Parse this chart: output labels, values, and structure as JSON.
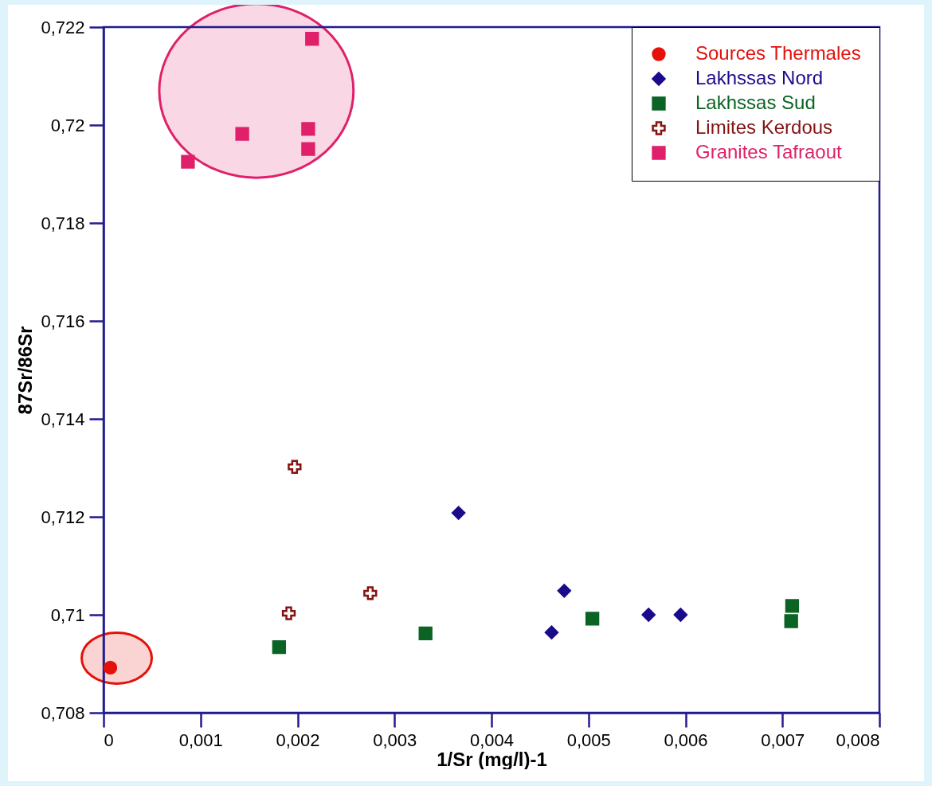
{
  "chart_data": {
    "type": "scatter",
    "xlabel": "1/Sr (mg/l)-1",
    "ylabel": "87Sr/86Sr",
    "xlim": [
      0,
      0.008
    ],
    "ylim": [
      0.708,
      0.722
    ],
    "xticks": [
      0,
      {
        "value": 0.001,
        "label": "0,001"
      },
      {
        "value": 0.002,
        "label": "0,002"
      },
      {
        "value": 0.003,
        "label": "0,003"
      },
      {
        "value": 0.004,
        "label": "0,004"
      },
      {
        "value": 0.005,
        "label": "0,005"
      },
      {
        "value": 0.006,
        "label": "0,006"
      },
      {
        "value": 0.007,
        "label": "0,007"
      },
      {
        "value": 0.008,
        "label": "0,008"
      }
    ],
    "yticks": [
      {
        "value": 0.708,
        "label": "0,708"
      },
      {
        "value": 0.71,
        "label": "0,71"
      },
      {
        "value": 0.712,
        "label": "0,712"
      },
      {
        "value": 0.714,
        "label": "0,714"
      },
      {
        "value": 0.716,
        "label": "0,716"
      },
      {
        "value": 0.718,
        "label": "0,718"
      },
      {
        "value": 0.72,
        "label": "0,72"
      },
      {
        "value": 0.722,
        "label": "0,722"
      }
    ],
    "grid": false,
    "legend": "top right",
    "series": [
      {
        "name": "Sources Thermales",
        "color": "#e3120b",
        "marker": "circle",
        "x": [
          7e-05
        ],
        "values": [
          0.70892
        ]
      },
      {
        "name": "Lakhssas Nord",
        "color": "#1a0b8c",
        "marker": "diamond",
        "x": [
          0.00366,
          0.00462,
          0.00475,
          0.00562,
          0.00595
        ],
        "values": [
          0.71208,
          0.70964,
          0.71049,
          0.71,
          0.71
        ]
      },
      {
        "name": "Lakhssas Sud",
        "color": "#0b6324",
        "marker": "square",
        "x": [
          0.00181,
          0.00332,
          0.00504,
          0.0071,
          0.00709
        ],
        "values": [
          0.70934,
          0.70962,
          0.70992,
          0.71018,
          0.70987
        ]
      },
      {
        "name": "Limites Kerdous",
        "color": "#851212",
        "marker": "cross",
        "x": [
          0.00197,
          0.00191,
          0.00275
        ],
        "values": [
          0.71302,
          0.71003,
          0.71044
        ]
      },
      {
        "name": "Granites Tafraout",
        "color": "#e0206a",
        "marker": "square",
        "x": [
          0.00215,
          0.00211,
          0.00211,
          0.00143,
          0.00087
        ],
        "values": [
          0.72176,
          0.71992,
          0.71951,
          0.71982,
          0.71925
        ]
      }
    ]
  }
}
